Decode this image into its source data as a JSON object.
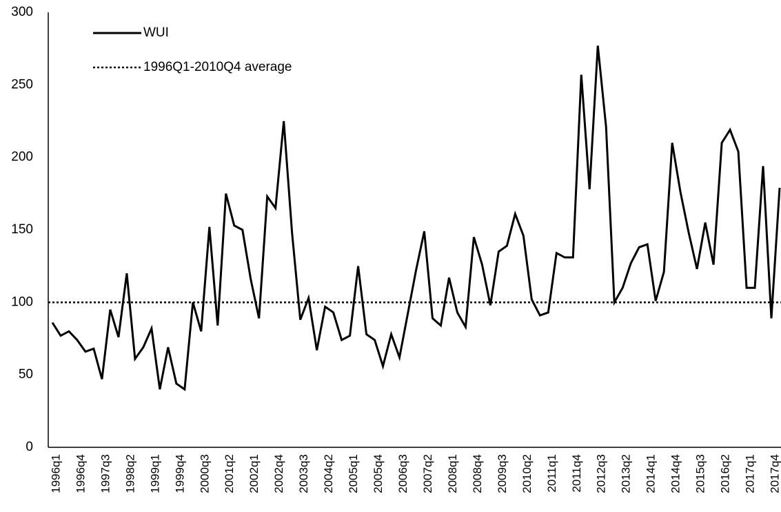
{
  "chart_data": {
    "type": "line",
    "categories": [
      "1996q1",
      null,
      null,
      "1996q4",
      null,
      null,
      "1997q3",
      null,
      null,
      "1998q2",
      null,
      null,
      "1999q1",
      null,
      null,
      "1999q4",
      null,
      null,
      "2000q3",
      null,
      null,
      "2001q2",
      null,
      null,
      "2002q1",
      null,
      null,
      "2002q4",
      null,
      null,
      "2003q3",
      null,
      null,
      "2004q2",
      null,
      null,
      "2005q1",
      null,
      null,
      "2005q4",
      null,
      null,
      "2006q3",
      null,
      null,
      "2007q2",
      null,
      null,
      "2008q1",
      null,
      null,
      "2008q4",
      null,
      null,
      "2009q3",
      null,
      null,
      "2010q2",
      null,
      null,
      "2011q1",
      null,
      null,
      "2011q4",
      null,
      null,
      "2012q3",
      null,
      null,
      "2013q2",
      null,
      null,
      "2014q1",
      null,
      null,
      "2014q4",
      null,
      null,
      "2015q3",
      null,
      null,
      "2016q2",
      null,
      null,
      "2017q1",
      null,
      null,
      "2017q4",
      null
    ],
    "series": [
      {
        "name": "WUI",
        "color": "#000000",
        "values": [
          86,
          77,
          80,
          74,
          66,
          68,
          47,
          95,
          76,
          120,
          61,
          69,
          82,
          40,
          69,
          44,
          40,
          100,
          80,
          152,
          84,
          175,
          153,
          150,
          116,
          89,
          173,
          165,
          225,
          148,
          88,
          103,
          67,
          97,
          93,
          74,
          77,
          125,
          78,
          74,
          56,
          78,
          62,
          92,
          122,
          149,
          89,
          84,
          117,
          93,
          83,
          145,
          126,
          98,
          135,
          139,
          161,
          146,
          102,
          91,
          93,
          134,
          131,
          131,
          257,
          178,
          277,
          221,
          100,
          110,
          127,
          138,
          140,
          101,
          121,
          210,
          176,
          148,
          123,
          155,
          126,
          210,
          219,
          204,
          110,
          110,
          194,
          89,
          179
        ]
      }
    ],
    "hlines": [
      {
        "name": "1996Q1-2010Q4 average",
        "value": 100,
        "color": "#000000",
        "style": "dotted"
      }
    ],
    "ylim": [
      0,
      300
    ],
    "yticks": [
      0,
      50,
      100,
      150,
      200,
      250,
      300
    ],
    "grid": false,
    "legend": "top-left"
  }
}
